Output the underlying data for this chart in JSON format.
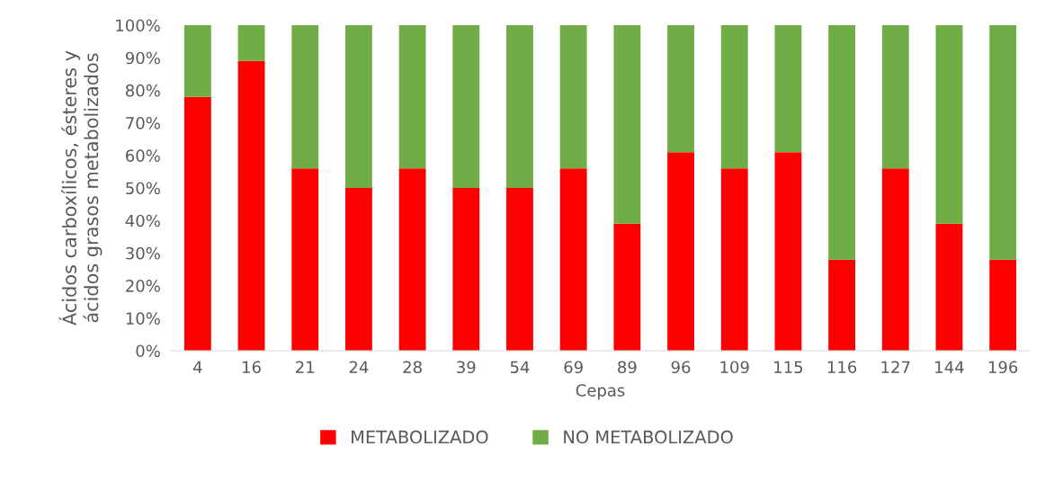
{
  "chart_data": {
    "type": "bar",
    "stacked": true,
    "xlabel": "Cepas",
    "ylabel": "Ácidos carboxílicos, ésteres y\nácidos grasos metabolizados",
    "categories": [
      "4",
      "16",
      "21",
      "24",
      "28",
      "39",
      "54",
      "69",
      "89",
      "96",
      "109",
      "115",
      "116",
      "127",
      "144",
      "196"
    ],
    "series": [
      {
        "name": "METABOLIZADO",
        "color": "#ff0000",
        "values": [
          78,
          89,
          56,
          50,
          56,
          50,
          50,
          56,
          39,
          61,
          56,
          61,
          28,
          56,
          39,
          28
        ]
      },
      {
        "name": "NO METABOLIZADO",
        "color": "#70ad47",
        "values": [
          22,
          11,
          44,
          50,
          44,
          50,
          50,
          44,
          61,
          39,
          44,
          39,
          72,
          44,
          61,
          72
        ]
      }
    ],
    "ylim": [
      0,
      100
    ],
    "yticks": [
      {
        "value": 0,
        "label": "0%"
      },
      {
        "value": 10,
        "label": "10%"
      },
      {
        "value": 20,
        "label": "20%"
      },
      {
        "value": 30,
        "label": "30%"
      },
      {
        "value": 40,
        "label": "40%"
      },
      {
        "value": 50,
        "label": "50%"
      },
      {
        "value": 60,
        "label": "60%"
      },
      {
        "value": 70,
        "label": "70%"
      },
      {
        "value": 80,
        "label": "80%"
      },
      {
        "value": 90,
        "label": "90%"
      },
      {
        "value": 100,
        "label": "100%"
      }
    ],
    "legend": "bottom",
    "grid": false
  }
}
